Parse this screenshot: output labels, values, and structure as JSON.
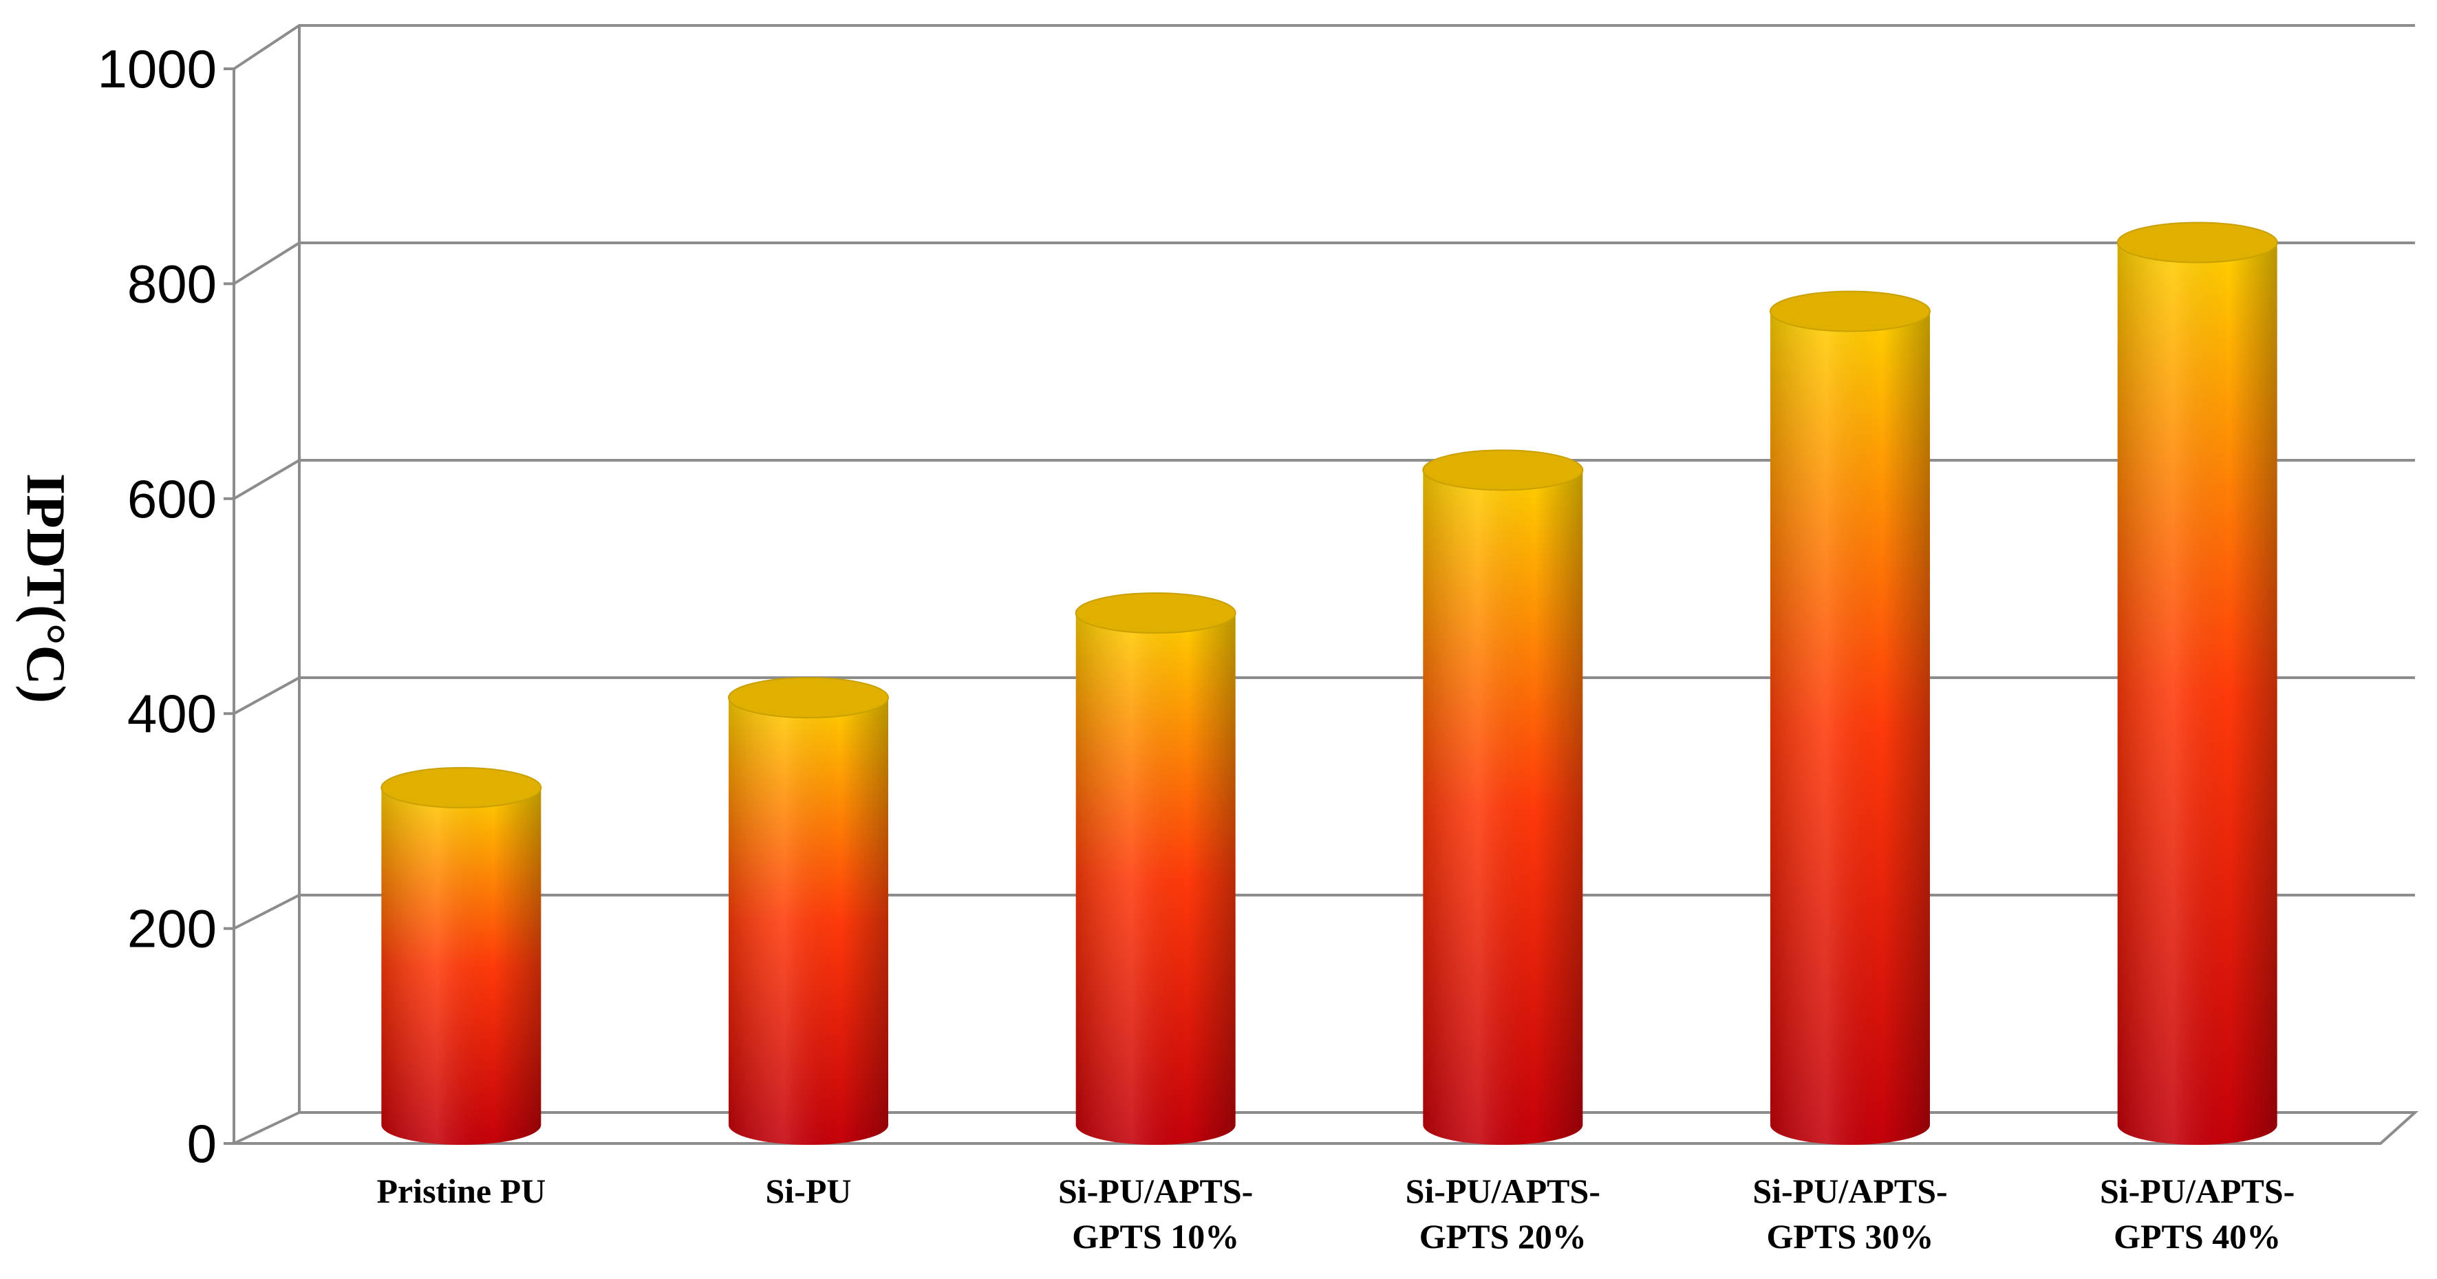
{
  "chart_data": {
    "type": "bar",
    "style": "3d-cylinder",
    "categories": [
      [
        "Pristine PU"
      ],
      [
        "Si-PU"
      ],
      [
        "Si-PU/APTS-",
        "GPTS 10%"
      ],
      [
        "Si-PU/APTS-",
        "GPTS 20%"
      ],
      [
        "Si-PU/APTS-",
        "GPTS 30%"
      ],
      [
        "Si-PU/APTS-",
        "GPTS 40%"
      ]
    ],
    "values": [
      340,
      425,
      505,
      640,
      790,
      855
    ],
    "ylabel": "IPDT(°C)",
    "ylim": [
      0,
      1000
    ],
    "yticks": [
      "0",
      "200",
      "400",
      "600",
      "800",
      "1000"
    ],
    "grid": true,
    "legend": "none",
    "colors": {
      "top": "#ffd200",
      "middle": "#ff3a0a",
      "bottom": "#c4000a",
      "cap": "#e0b000",
      "grid": "#8c8c8c"
    }
  }
}
